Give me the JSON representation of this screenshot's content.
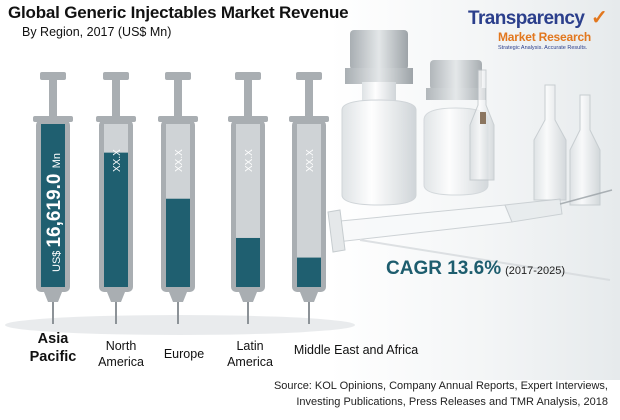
{
  "header": {
    "title": "Global Generic Injectables Market Revenue",
    "subtitle": "By Region, 2017 (US$ Mn)"
  },
  "logo": {
    "line1": "Transparency",
    "line2": "Market Research",
    "tagline": "Strategic Analysis. Accurate Results."
  },
  "chart_data": {
    "type": "bar",
    "title": "Global Generic Injectables Market Revenue",
    "subtitle": "By Region, 2017 (US$ Mn)",
    "categories": [
      "Asia Pacific",
      "North America",
      "Europe",
      "Latin America",
      "Middle East and Africa"
    ],
    "value_labels": [
      "US$ 16,619.0 Mn",
      "XX.X",
      "XX.X",
      "XX.X",
      "XX.X"
    ],
    "values": [
      16619.0,
      13700,
      9000,
      5000,
      3000
    ],
    "colors": {
      "fill": "#1f5f70",
      "empty": "#cfd3d6",
      "syringe": "#a9aeb2"
    }
  },
  "cagr": {
    "value": "CAGR 13.6%",
    "period": "(2017-2025)"
  },
  "source": {
    "line1": "Source: KOL Opinions, Company Annual Reports, Expert Interviews,",
    "line2": "Investing Publications, Press Releases and TMR Analysis, 2018"
  }
}
